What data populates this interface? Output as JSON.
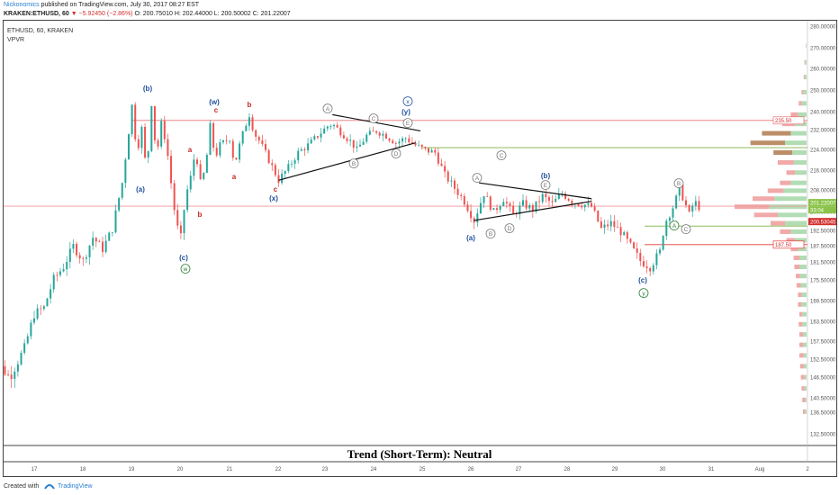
{
  "header": {
    "author": "Nickonomics",
    "published": "published on TradingView.com, July 30, 2017 08:27 EST",
    "symbol_line": "KRAKEN:ETHUSD, 60",
    "change": "▼ −5.92450 (−2.86%)",
    "ohlc": "O: 200.75010 H: 202.44000 L: 200.50002 C: 201.22007"
  },
  "footer": {
    "created_with": "Created with",
    "brand": "TradingView"
  },
  "chart_data": {
    "type": "candlestick",
    "title": "ETHUSD, 60, KRAKEN",
    "indicator": "VPVR",
    "caption": "Trend (Short-Term): Neutral",
    "y_ticks": [
      "280.00000",
      "270.00000",
      "260.00000",
      "250.00000",
      "240.00000",
      "232.00000",
      "224.00000",
      "216.00000",
      "208.00000",
      "200.00000",
      "192.50000",
      "187.50000",
      "181.50000",
      "175.50000",
      "169.50000",
      "163.50000",
      "157.50000",
      "152.50000",
      "146.50000",
      "140.50000",
      "136.50000",
      "132.50000"
    ],
    "x_ticks": [
      "17",
      "18",
      "19",
      "20",
      "21",
      "22",
      "23",
      "24",
      "25",
      "26",
      "27",
      "28",
      "29",
      "30",
      "31",
      "Aug",
      "2"
    ],
    "price_labels": [
      {
        "text": "201.22007",
        "kind": "current"
      },
      {
        "text": "33:04",
        "kind": "timer"
      },
      {
        "text": "200.53045",
        "kind": "line"
      },
      {
        "text": "235.50",
        "kind": "upper-level"
      },
      {
        "text": "187.50",
        "kind": "lower-level"
      }
    ],
    "horizontal_levels": [
      {
        "price": 235.5,
        "color": "#e57373"
      },
      {
        "price": 224.0,
        "color": "#7cb342"
      },
      {
        "price": 201.2,
        "color": "#ef9a9a"
      },
      {
        "price": 194.0,
        "color": "#7cb342"
      },
      {
        "price": 187.5,
        "color": "#e53935"
      }
    ],
    "wave_labels": [
      {
        "text": "(b)",
        "color": "#1e4f9c",
        "style": "plain"
      },
      {
        "text": "(a)",
        "color": "#1e4f9c",
        "style": "plain"
      },
      {
        "text": "a",
        "color": "#c62828",
        "style": "plain"
      },
      {
        "text": "b",
        "color": "#c62828",
        "style": "plain"
      },
      {
        "text": "(c)",
        "color": "#1e4f9c",
        "style": "plain"
      },
      {
        "text": "w",
        "color": "#2e7d32",
        "style": "circle"
      },
      {
        "text": "(w)",
        "color": "#1e4f9c",
        "style": "plain"
      },
      {
        "text": "c",
        "color": "#c62828",
        "style": "plain"
      },
      {
        "text": "a",
        "color": "#c62828",
        "style": "plain"
      },
      {
        "text": "b",
        "color": "#c62828",
        "style": "plain"
      },
      {
        "text": "c",
        "color": "#c62828",
        "style": "plain"
      },
      {
        "text": "(x)",
        "color": "#1e4f9c",
        "style": "plain"
      },
      {
        "text": "A",
        "color": "#777777",
        "style": "circle"
      },
      {
        "text": "B",
        "color": "#777777",
        "style": "circle"
      },
      {
        "text": "C",
        "color": "#777777",
        "style": "circle"
      },
      {
        "text": "D",
        "color": "#777777",
        "style": "circle"
      },
      {
        "text": "E",
        "color": "#777777",
        "style": "circle"
      },
      {
        "text": "x",
        "color": "#1e4f9c",
        "style": "circle"
      },
      {
        "text": "(y)",
        "color": "#1e4f9c",
        "style": "plain"
      },
      {
        "text": "(a)",
        "color": "#1e4f9c",
        "style": "plain"
      },
      {
        "text": "A",
        "color": "#777777",
        "style": "circle"
      },
      {
        "text": "B",
        "color": "#777777",
        "style": "circle"
      },
      {
        "text": "C",
        "color": "#777777",
        "style": "circle"
      },
      {
        "text": "D",
        "color": "#777777",
        "style": "circle"
      },
      {
        "text": "E",
        "color": "#777777",
        "style": "circle"
      },
      {
        "text": "(b)",
        "color": "#1e4f9c",
        "style": "plain"
      },
      {
        "text": "(c)",
        "color": "#1e4f9c",
        "style": "plain"
      },
      {
        "text": "y",
        "color": "#2e7d32",
        "style": "circle"
      },
      {
        "text": "A",
        "color": "#2e7d32",
        "style": "circle"
      },
      {
        "text": "B",
        "color": "#777777",
        "style": "circle"
      },
      {
        "text": "C",
        "color": "#777777",
        "style": "circle"
      }
    ],
    "price_path": [
      {
        "day": 16.0,
        "price": 160
      },
      {
        "day": 16.1,
        "price": 150
      },
      {
        "day": 16.2,
        "price": 140
      },
      {
        "day": 16.3,
        "price": 150
      },
      {
        "day": 16.5,
        "price": 147
      },
      {
        "day": 16.8,
        "price": 155
      },
      {
        "day": 17.0,
        "price": 165
      },
      {
        "day": 17.2,
        "price": 167
      },
      {
        "day": 17.4,
        "price": 176
      },
      {
        "day": 17.6,
        "price": 180
      },
      {
        "day": 17.8,
        "price": 187
      },
      {
        "day": 18.0,
        "price": 182
      },
      {
        "day": 18.2,
        "price": 190
      },
      {
        "day": 18.4,
        "price": 186
      },
      {
        "day": 18.6,
        "price": 193
      },
      {
        "day": 18.8,
        "price": 210
      },
      {
        "day": 18.9,
        "price": 225
      },
      {
        "day": 19.0,
        "price": 242
      },
      {
        "day": 19.1,
        "price": 222
      },
      {
        "day": 19.2,
        "price": 232
      },
      {
        "day": 19.3,
        "price": 213
      },
      {
        "day": 19.4,
        "price": 243
      },
      {
        "day": 19.5,
        "price": 220
      },
      {
        "day": 19.6,
        "price": 234
      },
      {
        "day": 19.7,
        "price": 226
      },
      {
        "day": 19.8,
        "price": 210
      },
      {
        "day": 19.9,
        "price": 195
      },
      {
        "day": 20.0,
        "price": 190
      },
      {
        "day": 20.1,
        "price": 205
      },
      {
        "day": 20.2,
        "price": 212
      },
      {
        "day": 20.3,
        "price": 223
      },
      {
        "day": 20.4,
        "price": 210
      },
      {
        "day": 20.5,
        "price": 215
      },
      {
        "day": 20.6,
        "price": 233
      },
      {
        "day": 20.7,
        "price": 220
      },
      {
        "day": 20.8,
        "price": 225
      },
      {
        "day": 21.0,
        "price": 228
      },
      {
        "day": 21.1,
        "price": 217
      },
      {
        "day": 21.2,
        "price": 225
      },
      {
        "day": 21.3,
        "price": 232
      },
      {
        "day": 21.4,
        "price": 238
      },
      {
        "day": 21.5,
        "price": 230
      },
      {
        "day": 21.6,
        "price": 227
      },
      {
        "day": 21.7,
        "price": 223
      },
      {
        "day": 21.8,
        "price": 219
      },
      {
        "day": 22.0,
        "price": 211
      },
      {
        "day": 22.2,
        "price": 216
      },
      {
        "day": 22.4,
        "price": 222
      },
      {
        "day": 22.6,
        "price": 225
      },
      {
        "day": 22.8,
        "price": 229
      },
      {
        "day": 23.0,
        "price": 233
      },
      {
        "day": 23.1,
        "price": 234
      },
      {
        "day": 23.3,
        "price": 230
      },
      {
        "day": 23.5,
        "price": 226
      },
      {
        "day": 23.6,
        "price": 223
      },
      {
        "day": 23.8,
        "price": 229
      },
      {
        "day": 24.0,
        "price": 231
      },
      {
        "day": 24.2,
        "price": 229
      },
      {
        "day": 24.4,
        "price": 226
      },
      {
        "day": 24.6,
        "price": 228
      },
      {
        "day": 24.8,
        "price": 225
      },
      {
        "day": 25.0,
        "price": 223
      },
      {
        "day": 25.2,
        "price": 222
      },
      {
        "day": 25.4,
        "price": 213
      },
      {
        "day": 25.6,
        "price": 208
      },
      {
        "day": 25.8,
        "price": 203
      },
      {
        "day": 26.0,
        "price": 196
      },
      {
        "day": 26.2,
        "price": 206
      },
      {
        "day": 26.4,
        "price": 199
      },
      {
        "day": 26.6,
        "price": 204
      },
      {
        "day": 26.8,
        "price": 198
      },
      {
        "day": 27.0,
        "price": 202
      },
      {
        "day": 27.2,
        "price": 200
      },
      {
        "day": 27.4,
        "price": 205
      },
      {
        "day": 27.6,
        "price": 202
      },
      {
        "day": 27.8,
        "price": 206
      },
      {
        "day": 28.0,
        "price": 203
      },
      {
        "day": 28.2,
        "price": 202
      },
      {
        "day": 28.4,
        "price": 201
      },
      {
        "day": 28.6,
        "price": 193
      },
      {
        "day": 28.8,
        "price": 195
      },
      {
        "day": 29.0,
        "price": 192
      },
      {
        "day": 29.2,
        "price": 187
      },
      {
        "day": 29.4,
        "price": 182
      },
      {
        "day": 29.6,
        "price": 180
      },
      {
        "day": 29.8,
        "price": 185
      },
      {
        "day": 29.9,
        "price": 195
      },
      {
        "day": 30.1,
        "price": 202
      },
      {
        "day": 30.2,
        "price": 208
      },
      {
        "day": 30.3,
        "price": 203
      },
      {
        "day": 30.4,
        "price": 198
      },
      {
        "day": 30.5,
        "price": 203
      },
      {
        "day": 30.6,
        "price": 201
      }
    ],
    "volume_profile": [
      {
        "price": 270,
        "up": 0.01,
        "down": 0.0
      },
      {
        "price": 262,
        "up": 0.02,
        "down": 0.01
      },
      {
        "price": 255,
        "up": 0.03,
        "down": 0.01
      },
      {
        "price": 248,
        "up": 0.05,
        "down": 0.02
      },
      {
        "price": 243,
        "up": 0.07,
        "down": 0.04
      },
      {
        "price": 238,
        "up": 0.12,
        "down": 0.1
      },
      {
        "price": 234,
        "up": 0.16,
        "down": 0.18
      },
      {
        "price": 230,
        "up": 0.22,
        "down": 0.4
      },
      {
        "price": 226,
        "up": 0.3,
        "down": 0.48
      },
      {
        "price": 222,
        "up": 0.2,
        "down": 0.26
      },
      {
        "price": 218,
        "up": 0.18,
        "down": 0.22
      },
      {
        "price": 214,
        "up": 0.16,
        "down": 0.12
      },
      {
        "price": 210,
        "up": 0.22,
        "down": 0.15
      },
      {
        "price": 207,
        "up": 0.32,
        "down": 0.22
      },
      {
        "price": 204,
        "up": 0.45,
        "down": 0.3
      },
      {
        "price": 201,
        "up": 0.52,
        "down": 0.48
      },
      {
        "price": 198,
        "up": 0.4,
        "down": 0.33
      },
      {
        "price": 195,
        "up": 0.3,
        "down": 0.2
      },
      {
        "price": 192,
        "up": 0.22,
        "down": 0.15
      },
      {
        "price": 189,
        "up": 0.16,
        "down": 0.12
      },
      {
        "price": 186,
        "up": 0.12,
        "down": 0.1
      },
      {
        "price": 183,
        "up": 0.1,
        "down": 0.08
      },
      {
        "price": 180,
        "up": 0.1,
        "down": 0.07
      },
      {
        "price": 177,
        "up": 0.09,
        "down": 0.06
      },
      {
        "price": 174,
        "up": 0.08,
        "down": 0.06
      },
      {
        "price": 171,
        "up": 0.07,
        "down": 0.05
      },
      {
        "price": 168,
        "up": 0.07,
        "down": 0.05
      },
      {
        "price": 165,
        "up": 0.06,
        "down": 0.04
      },
      {
        "price": 162,
        "up": 0.06,
        "down": 0.05
      },
      {
        "price": 159,
        "up": 0.05,
        "down": 0.05
      },
      {
        "price": 156,
        "up": 0.05,
        "down": 0.05
      },
      {
        "price": 153,
        "up": 0.04,
        "down": 0.06
      },
      {
        "price": 150,
        "up": 0.04,
        "down": 0.05
      },
      {
        "price": 147,
        "up": 0.03,
        "down": 0.05
      },
      {
        "price": 144,
        "up": 0.03,
        "down": 0.04
      },
      {
        "price": 141,
        "up": 0.02,
        "down": 0.04
      },
      {
        "price": 138,
        "up": 0.02,
        "down": 0.03
      }
    ],
    "colors": {
      "up": "#26a69a",
      "down": "#ef5350",
      "vp_up": "#a5d6a7",
      "vp_down": "#ef9a9a",
      "vp_poc": "#b07a4d",
      "pattern": "#111111"
    }
  }
}
